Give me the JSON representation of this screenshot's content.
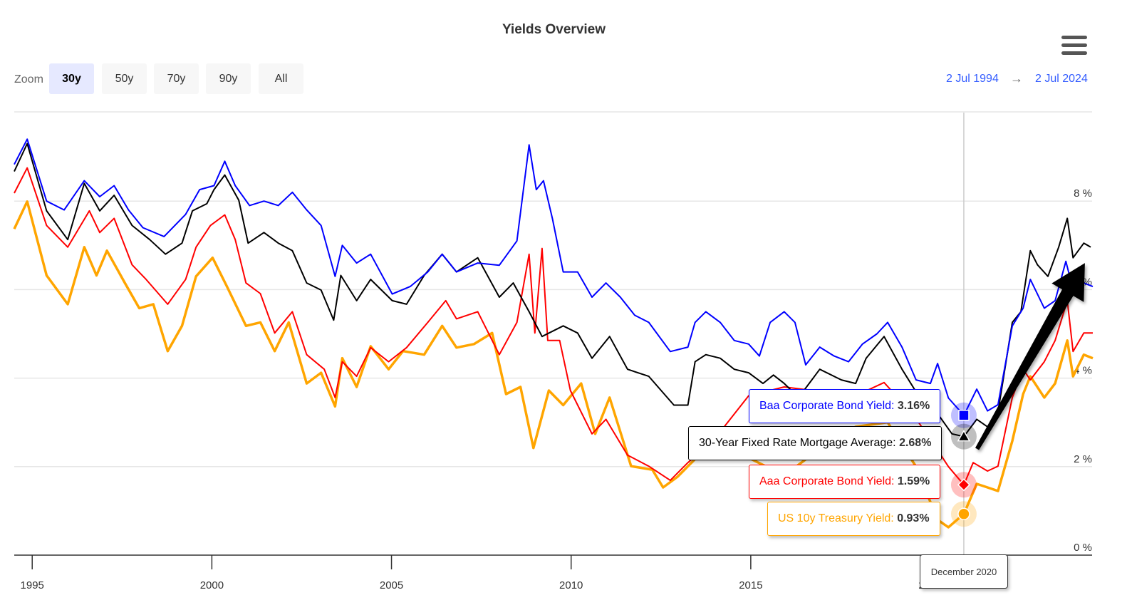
{
  "title": "Yields Overview",
  "zoom": {
    "label": "Zoom",
    "buttons": [
      "30y",
      "50y",
      "70y",
      "90y",
      "All"
    ],
    "active": "30y"
  },
  "range": {
    "from": "2 Jul 1994",
    "arrow": "→",
    "to": "2 Jul 2024"
  },
  "tooltip": {
    "date": "December 2020",
    "items": [
      {
        "name": "Baa Corporate Bond Yield",
        "value": "3.16%"
      },
      {
        "name": "30-Year Fixed Rate Mortgage Average",
        "value": "2.68%"
      },
      {
        "name": "Aaa Corporate Bond Yield",
        "value": "1.59%"
      },
      {
        "name": "US 10y Treasury Yield",
        "value": "0.93%"
      }
    ]
  },
  "chart_data": {
    "type": "line",
    "title": "Yields Overview",
    "xlim": [
      1994.5,
      2024.5
    ],
    "ylim": [
      0,
      10
    ],
    "x_ticks": [
      "1995",
      "2000",
      "2005",
      "2010",
      "2015",
      "2020"
    ],
    "y_ticks": [
      "0 %",
      "2 %",
      "4 %",
      "6 %",
      "8 %"
    ],
    "series": [
      {
        "name": "Baa Corporate Bond Yield",
        "color": "#0000ff",
        "marker": "square",
        "points": [
          [
            1994.5,
            8.83
          ],
          [
            1994.86,
            9.4
          ],
          [
            1995.4,
            8.0
          ],
          [
            1995.89,
            7.8
          ],
          [
            1996.45,
            8.46
          ],
          [
            1996.88,
            8.1
          ],
          [
            1997.28,
            8.35
          ],
          [
            1997.68,
            7.8
          ],
          [
            1998.08,
            7.4
          ],
          [
            1998.67,
            7.2
          ],
          [
            1999.27,
            7.7
          ],
          [
            1999.66,
            8.26
          ],
          [
            2000.06,
            8.35
          ],
          [
            2000.36,
            8.9
          ],
          [
            2000.65,
            8.35
          ],
          [
            2001.05,
            7.9
          ],
          [
            2001.45,
            8.0
          ],
          [
            2001.85,
            7.9
          ],
          [
            2002.24,
            8.2
          ],
          [
            2002.64,
            7.8
          ],
          [
            2003.04,
            7.45
          ],
          [
            2003.43,
            6.3
          ],
          [
            2003.63,
            7.0
          ],
          [
            2004.03,
            6.6
          ],
          [
            2004.42,
            6.8
          ],
          [
            2005.02,
            5.9
          ],
          [
            2005.52,
            6.07
          ],
          [
            2006.01,
            6.4
          ],
          [
            2006.41,
            6.8
          ],
          [
            2006.81,
            6.4
          ],
          [
            2007.4,
            6.6
          ],
          [
            2008.0,
            6.55
          ],
          [
            2008.49,
            7.1
          ],
          [
            2008.83,
            9.27
          ],
          [
            2009.03,
            8.26
          ],
          [
            2009.23,
            8.46
          ],
          [
            2009.48,
            7.6
          ],
          [
            2009.78,
            6.4
          ],
          [
            2010.18,
            6.4
          ],
          [
            2010.58,
            5.83
          ],
          [
            2010.97,
            6.15
          ],
          [
            2011.37,
            5.83
          ],
          [
            2011.77,
            5.42
          ],
          [
            2012.16,
            5.26
          ],
          [
            2012.76,
            4.6
          ],
          [
            2013.25,
            4.7
          ],
          [
            2013.45,
            5.26
          ],
          [
            2013.75,
            5.5
          ],
          [
            2014.15,
            5.26
          ],
          [
            2014.54,
            4.85
          ],
          [
            2014.94,
            4.77
          ],
          [
            2015.24,
            4.5
          ],
          [
            2015.54,
            5.26
          ],
          [
            2015.93,
            5.5
          ],
          [
            2016.23,
            5.26
          ],
          [
            2016.53,
            4.3
          ],
          [
            2016.92,
            4.7
          ],
          [
            2017.32,
            4.5
          ],
          [
            2017.72,
            4.37
          ],
          [
            2018.11,
            4.77
          ],
          [
            2018.51,
            5.0
          ],
          [
            2018.81,
            5.26
          ],
          [
            2019.21,
            4.7
          ],
          [
            2019.6,
            3.96
          ],
          [
            2020.0,
            3.88
          ],
          [
            2020.2,
            4.33
          ],
          [
            2020.5,
            3.55
          ],
          [
            2020.93,
            3.16
          ],
          [
            2021.29,
            3.75
          ],
          [
            2021.59,
            3.26
          ],
          [
            2021.88,
            3.4
          ],
          [
            2022.28,
            5.18
          ],
          [
            2022.58,
            5.58
          ],
          [
            2022.78,
            6.23
          ],
          [
            2023.17,
            5.58
          ],
          [
            2023.47,
            5.75
          ],
          [
            2023.77,
            6.64
          ],
          [
            2023.97,
            6.0
          ],
          [
            2024.27,
            6.15
          ],
          [
            2024.52,
            6.07
          ]
        ]
      },
      {
        "name": "30-Year Fixed Rate Mortgage Average",
        "color": "#000000",
        "marker": "triangle",
        "points": [
          [
            1994.5,
            8.67
          ],
          [
            1994.86,
            9.3
          ],
          [
            1995.4,
            7.78
          ],
          [
            1995.99,
            7.13
          ],
          [
            1996.45,
            8.4
          ],
          [
            1996.88,
            7.78
          ],
          [
            1997.28,
            8.13
          ],
          [
            1997.78,
            7.45
          ],
          [
            1998.27,
            7.13
          ],
          [
            1998.71,
            6.8
          ],
          [
            1999.17,
            7.05
          ],
          [
            1999.46,
            7.78
          ],
          [
            1999.86,
            7.94
          ],
          [
            2000.06,
            8.26
          ],
          [
            2000.36,
            8.59
          ],
          [
            2000.75,
            8.02
          ],
          [
            2001.01,
            7.05
          ],
          [
            2001.45,
            7.29
          ],
          [
            2001.85,
            7.05
          ],
          [
            2002.24,
            6.88
          ],
          [
            2002.64,
            6.15
          ],
          [
            2003.04,
            5.99
          ],
          [
            2003.39,
            5.31
          ],
          [
            2003.59,
            6.32
          ],
          [
            2004.03,
            5.75
          ],
          [
            2004.42,
            6.23
          ],
          [
            2005.02,
            5.75
          ],
          [
            2005.42,
            5.67
          ],
          [
            2005.91,
            6.32
          ],
          [
            2006.41,
            6.8
          ],
          [
            2006.81,
            6.4
          ],
          [
            2007.4,
            6.72
          ],
          [
            2008.0,
            5.83
          ],
          [
            2008.39,
            6.15
          ],
          [
            2008.83,
            5.5
          ],
          [
            2009.19,
            4.94
          ],
          [
            2009.78,
            5.18
          ],
          [
            2010.18,
            5.02
          ],
          [
            2010.58,
            4.45
          ],
          [
            2011.07,
            4.94
          ],
          [
            2011.57,
            4.2
          ],
          [
            2012.16,
            4.04
          ],
          [
            2012.86,
            3.39
          ],
          [
            2013.25,
            3.39
          ],
          [
            2013.45,
            4.37
          ],
          [
            2013.75,
            4.53
          ],
          [
            2014.15,
            4.45
          ],
          [
            2014.54,
            4.2
          ],
          [
            2014.94,
            4.12
          ],
          [
            2015.34,
            3.88
          ],
          [
            2015.63,
            4.07
          ],
          [
            2015.93,
            3.88
          ],
          [
            2016.33,
            3.56
          ],
          [
            2016.92,
            4.2
          ],
          [
            2017.52,
            3.96
          ],
          [
            2017.92,
            3.88
          ],
          [
            2018.21,
            4.45
          ],
          [
            2018.71,
            4.94
          ],
          [
            2019.21,
            4.2
          ],
          [
            2019.7,
            3.56
          ],
          [
            2020.1,
            3.31
          ],
          [
            2020.6,
            2.74
          ],
          [
            2020.93,
            2.68
          ],
          [
            2021.29,
            3.07
          ],
          [
            2021.59,
            2.9
          ],
          [
            2021.88,
            3.23
          ],
          [
            2022.28,
            5.26
          ],
          [
            2022.52,
            5.5
          ],
          [
            2022.78,
            6.88
          ],
          [
            2022.98,
            6.56
          ],
          [
            2023.27,
            6.3
          ],
          [
            2023.57,
            6.96
          ],
          [
            2023.81,
            7.61
          ],
          [
            2023.97,
            6.72
          ],
          [
            2024.27,
            7.05
          ],
          [
            2024.46,
            6.96
          ]
        ]
      },
      {
        "name": "Aaa Corporate Bond Yield",
        "color": "#ff0000",
        "marker": "diamond",
        "points": [
          [
            1994.5,
            8.18
          ],
          [
            1994.86,
            8.75
          ],
          [
            1995.4,
            7.45
          ],
          [
            1995.99,
            6.96
          ],
          [
            1996.59,
            7.78
          ],
          [
            1996.88,
            7.29
          ],
          [
            1997.28,
            7.61
          ],
          [
            1997.78,
            6.56
          ],
          [
            1998.17,
            6.23
          ],
          [
            1998.77,
            5.67
          ],
          [
            1999.27,
            6.23
          ],
          [
            1999.56,
            6.96
          ],
          [
            1999.96,
            7.45
          ],
          [
            2000.36,
            7.69
          ],
          [
            2000.65,
            7.13
          ],
          [
            2000.95,
            6.15
          ],
          [
            2001.35,
            5.91
          ],
          [
            2001.75,
            5.02
          ],
          [
            2002.24,
            5.5
          ],
          [
            2002.64,
            4.53
          ],
          [
            2003.13,
            4.2
          ],
          [
            2003.43,
            3.56
          ],
          [
            2003.63,
            4.37
          ],
          [
            2004.03,
            4.04
          ],
          [
            2004.42,
            4.69
          ],
          [
            2004.92,
            4.37
          ],
          [
            2005.42,
            4.69
          ],
          [
            2006.01,
            5.26
          ],
          [
            2006.51,
            5.75
          ],
          [
            2006.81,
            5.34
          ],
          [
            2007.4,
            5.5
          ],
          [
            2008.0,
            4.53
          ],
          [
            2008.49,
            5.26
          ],
          [
            2008.83,
            6.8
          ],
          [
            2008.99,
            5.02
          ],
          [
            2009.19,
            6.93
          ],
          [
            2009.35,
            4.85
          ],
          [
            2009.68,
            4.85
          ],
          [
            2009.98,
            3.72
          ],
          [
            2010.58,
            2.74
          ],
          [
            2010.97,
            3.07
          ],
          [
            2011.57,
            2.26
          ],
          [
            2012.16,
            2.01
          ],
          [
            2012.76,
            1.69
          ],
          [
            2013.25,
            2.09
          ],
          [
            2013.95,
            2.58
          ],
          [
            2014.94,
            3.6
          ],
          [
            2015.93,
            3.8
          ],
          [
            2016.92,
            3.7
          ],
          [
            2017.92,
            3.6
          ],
          [
            2018.71,
            3.9
          ],
          [
            2019.5,
            3.2
          ],
          [
            2020.1,
            2.5
          ],
          [
            2020.5,
            2.0
          ],
          [
            2020.93,
            1.59
          ],
          [
            2021.19,
            2.09
          ],
          [
            2021.59,
            1.9
          ],
          [
            2021.88,
            2.01
          ],
          [
            2022.28,
            3.56
          ],
          [
            2022.58,
            4.2
          ],
          [
            2022.78,
            3.96
          ],
          [
            2023.17,
            4.37
          ],
          [
            2023.47,
            4.85
          ],
          [
            2023.81,
            5.75
          ],
          [
            2023.97,
            4.6
          ],
          [
            2024.27,
            5.02
          ],
          [
            2024.52,
            5.02
          ]
        ]
      },
      {
        "name": "US 10y Treasury Yield",
        "color": "#ffa500",
        "marker": "circle",
        "points": [
          [
            1994.5,
            7.37
          ],
          [
            1994.86,
            7.99
          ],
          [
            1995.4,
            6.32
          ],
          [
            1995.99,
            5.67
          ],
          [
            1996.45,
            6.96
          ],
          [
            1996.79,
            6.32
          ],
          [
            1997.08,
            6.88
          ],
          [
            1997.58,
            6.15
          ],
          [
            1997.98,
            5.58
          ],
          [
            1998.37,
            5.67
          ],
          [
            1998.77,
            4.61
          ],
          [
            1999.17,
            5.18
          ],
          [
            1999.56,
            6.3
          ],
          [
            2000.02,
            6.72
          ],
          [
            2000.42,
            6.07
          ],
          [
            2000.95,
            5.18
          ],
          [
            2001.35,
            5.26
          ],
          [
            2001.75,
            4.61
          ],
          [
            2002.14,
            5.26
          ],
          [
            2002.64,
            3.88
          ],
          [
            2003.04,
            4.12
          ],
          [
            2003.43,
            3.36
          ],
          [
            2003.63,
            4.45
          ],
          [
            2004.03,
            3.8
          ],
          [
            2004.42,
            4.72
          ],
          [
            2004.92,
            4.2
          ],
          [
            2005.32,
            4.61
          ],
          [
            2005.91,
            4.53
          ],
          [
            2006.41,
            5.18
          ],
          [
            2006.81,
            4.69
          ],
          [
            2007.3,
            4.77
          ],
          [
            2007.8,
            5.02
          ],
          [
            2008.19,
            3.64
          ],
          [
            2008.59,
            3.8
          ],
          [
            2008.95,
            2.42
          ],
          [
            2009.38,
            3.72
          ],
          [
            2009.78,
            3.39
          ],
          [
            2010.28,
            3.88
          ],
          [
            2010.67,
            2.74
          ],
          [
            2011.07,
            3.56
          ],
          [
            2011.67,
            2.01
          ],
          [
            2012.26,
            1.93
          ],
          [
            2012.56,
            1.53
          ],
          [
            2012.96,
            1.77
          ],
          [
            2013.95,
            2.58
          ],
          [
            2014.94,
            2.2
          ],
          [
            2015.93,
            1.8
          ],
          [
            2016.92,
            2.4
          ],
          [
            2017.92,
            2.9
          ],
          [
            2018.81,
            3.0
          ],
          [
            2019.6,
            2.0
          ],
          [
            2020.2,
            0.8
          ],
          [
            2020.5,
            0.63
          ],
          [
            2020.93,
            0.93
          ],
          [
            2021.29,
            1.61
          ],
          [
            2021.59,
            1.53
          ],
          [
            2021.88,
            1.45
          ],
          [
            2022.28,
            2.58
          ],
          [
            2022.58,
            3.64
          ],
          [
            2022.78,
            4.04
          ],
          [
            2023.17,
            3.56
          ],
          [
            2023.47,
            3.88
          ],
          [
            2023.81,
            4.85
          ],
          [
            2023.97,
            4.04
          ],
          [
            2024.27,
            4.53
          ],
          [
            2024.52,
            4.45
          ]
        ]
      }
    ],
    "crosshair_x": 2020.93,
    "annotation": {
      "type": "arrow",
      "from": [
        2021.3,
        2.4
      ],
      "to": [
        2024.3,
        6.6
      ]
    }
  }
}
